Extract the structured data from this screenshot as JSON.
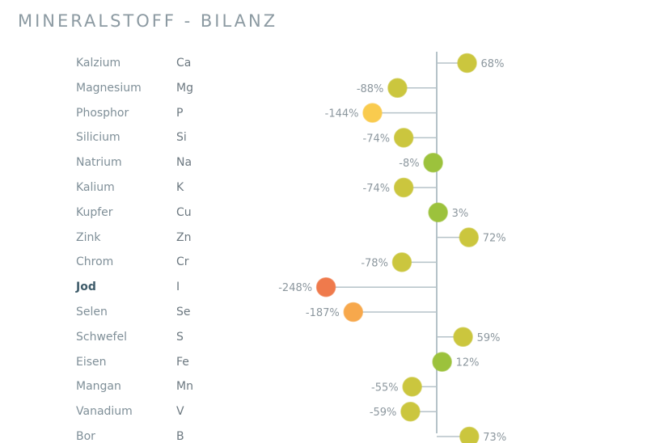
{
  "chart_data": {
    "type": "lollipop",
    "title": "MINERALSTOFF - BILANZ",
    "unit": "%",
    "rows": [
      {
        "name": "Kalzium",
        "symbol": "Ca",
        "value": 68,
        "color": "#cbc63e"
      },
      {
        "name": "Magnesium",
        "symbol": "Mg",
        "value": -88,
        "color": "#cbc63e"
      },
      {
        "name": "Phosphor",
        "symbol": "P",
        "value": -144,
        "color": "#f9cb4e"
      },
      {
        "name": "Silicium",
        "symbol": "Si",
        "value": -74,
        "color": "#cbc63e"
      },
      {
        "name": "Natrium",
        "symbol": "Na",
        "value": -8,
        "color": "#9cc23c"
      },
      {
        "name": "Kalium",
        "symbol": "K",
        "value": -74,
        "color": "#cbc63e"
      },
      {
        "name": "Kupfer",
        "symbol": "Cu",
        "value": 3,
        "color": "#9cc23c"
      },
      {
        "name": "Zink",
        "symbol": "Zn",
        "value": 72,
        "color": "#cbc63e"
      },
      {
        "name": "Chrom",
        "symbol": "Cr",
        "value": -78,
        "color": "#cbc63e"
      },
      {
        "name": "Jod",
        "symbol": "I",
        "value": -248,
        "color": "#ef7a4c",
        "bold": true
      },
      {
        "name": "Selen",
        "symbol": "Se",
        "value": -187,
        "color": "#f7a84c"
      },
      {
        "name": "Schwefel",
        "symbol": "S",
        "value": 59,
        "color": "#cbc63e"
      },
      {
        "name": "Eisen",
        "symbol": "Fe",
        "value": 12,
        "color": "#9cc23c"
      },
      {
        "name": "Mangan",
        "symbol": "Mn",
        "value": -55,
        "color": "#cbc63e"
      },
      {
        "name": "Vanadium",
        "symbol": "V",
        "value": -59,
        "color": "#cbc63e"
      },
      {
        "name": "Bor",
        "symbol": "B",
        "value": 73,
        "color": "#cbc63e"
      }
    ]
  }
}
